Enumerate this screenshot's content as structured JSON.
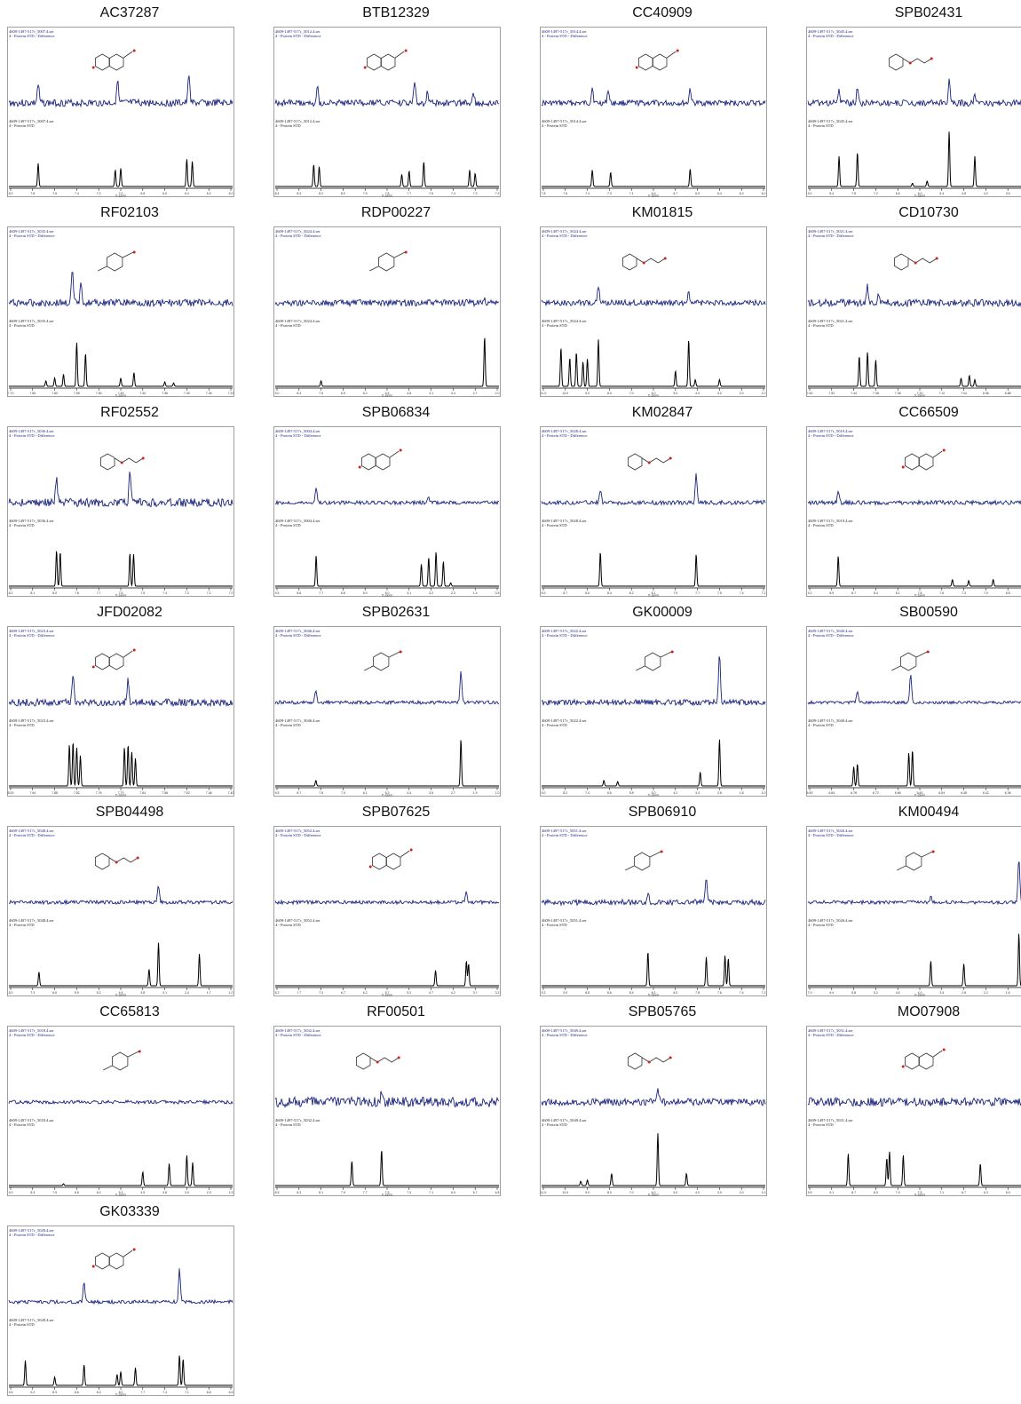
{
  "colors": {
    "difference": "#1a237e",
    "reference": "#000000",
    "molecule": "#333333",
    "heteroatom": "#cc2222"
  },
  "header_lines": {
    "diff_suffix": "Protein STD - Difference",
    "ref_suffix": "Protein STD",
    "axis_label": "f1 (ppm)"
  },
  "compounds": [
    {
      "id": "AC37287",
      "file": "4609-1497-517c_5007.4.ser",
      "mol": "ring2",
      "ppm": [
        8.0,
        6.0
      ],
      "peaks": [
        [
          7.75,
          0.42
        ],
        [
          7.05,
          0.3
        ],
        [
          7.0,
          0.33
        ],
        [
          6.4,
          0.5
        ],
        [
          6.35,
          0.46
        ]
      ],
      "diff": [
        [
          7.75,
          0.35
        ],
        [
          7.03,
          0.45
        ],
        [
          6.38,
          0.55
        ]
      ],
      "noise": 0.1
    },
    {
      "id": "BTB12329",
      "file": "4609-1497-517c_5012.4.ser",
      "mol": "ring2",
      "ppm": [
        8.4,
        7.2
      ],
      "peaks": [
        [
          8.2,
          0.4
        ],
        [
          8.17,
          0.36
        ],
        [
          7.72,
          0.22
        ],
        [
          7.68,
          0.28
        ],
        [
          7.6,
          0.45
        ],
        [
          7.35,
          0.3
        ],
        [
          7.32,
          0.24
        ]
      ],
      "diff": [
        [
          8.18,
          0.3
        ],
        [
          7.65,
          0.4
        ],
        [
          7.58,
          0.25
        ],
        [
          7.33,
          0.2
        ]
      ],
      "noise": 0.09
    },
    {
      "id": "CC40909",
      "file": "4609-1497-517c_5014.4.ser",
      "mol": "ring2",
      "ppm": [
        7.8,
        6.0
      ],
      "peaks": [
        [
          7.4,
          0.3
        ],
        [
          7.25,
          0.26
        ],
        [
          6.6,
          0.32
        ]
      ],
      "diff": [
        [
          7.4,
          0.3
        ],
        [
          7.27,
          0.26
        ],
        [
          6.6,
          0.28
        ]
      ],
      "noise": 0.08
    },
    {
      "id": "SPB02431",
      "file": "4609-1497-517c_5045.4.ser",
      "mol": "chain",
      "ppm": [
        9.0,
        3.0
      ],
      "peaks": [
        [
          8.2,
          0.55
        ],
        [
          7.7,
          0.62
        ],
        [
          6.2,
          0.06
        ],
        [
          5.8,
          0.1
        ],
        [
          5.2,
          1.0
        ],
        [
          4.5,
          0.55
        ]
      ],
      "diff": [
        [
          8.2,
          0.25
        ],
        [
          7.7,
          0.3
        ],
        [
          5.2,
          0.4
        ],
        [
          4.5,
          0.2
        ]
      ],
      "noise": 0.09
    },
    {
      "id": "RF02103",
      "file": "4609-1497-517c_5035.4.ser",
      "mol": "ring1",
      "ppm": [
        7.7,
        7.2
      ],
      "peaks": [
        [
          7.62,
          0.1
        ],
        [
          7.6,
          0.15
        ],
        [
          7.58,
          0.22
        ],
        [
          7.55,
          0.8
        ],
        [
          7.53,
          0.6
        ],
        [
          7.45,
          0.15
        ],
        [
          7.42,
          0.25
        ],
        [
          7.35,
          0.08
        ],
        [
          7.33,
          0.06
        ]
      ],
      "diff": [
        [
          7.56,
          0.6
        ],
        [
          7.54,
          0.4
        ]
      ],
      "noise": 0.1
    },
    {
      "id": "RDP00227",
      "file": "4609-1497-517c_5024.4.ser",
      "mol": "ring1",
      "ppm": [
        9.0,
        2.0
      ],
      "peaks": [
        [
          7.6,
          0.1
        ],
        [
          2.4,
          0.9
        ]
      ],
      "diff": [
        [
          2.4,
          0.05
        ]
      ],
      "noise": 0.09
    },
    {
      "id": "KM01815",
      "file": "4609-1497-517c_5024.4.ser",
      "mol": "chain",
      "ppm": [
        11.0,
        1.0
      ],
      "peaks": [
        [
          10.2,
          0.7
        ],
        [
          9.8,
          0.52
        ],
        [
          9.5,
          0.62
        ],
        [
          9.2,
          0.45
        ],
        [
          9.0,
          0.5
        ],
        [
          8.5,
          0.85
        ],
        [
          5.0,
          0.28
        ],
        [
          4.4,
          0.85
        ],
        [
          4.1,
          0.12
        ],
        [
          3.0,
          0.12
        ]
      ],
      "diff": [
        [
          8.5,
          0.3
        ],
        [
          4.4,
          0.25
        ]
      ],
      "noise": 0.08
    },
    {
      "id": "CD10730",
      "file": "4609-1497-517c_5021.4.ser",
      "mol": "chain",
      "ppm": [
        7.6,
        6.8
      ],
      "peaks": [
        [
          7.42,
          0.55
        ],
        [
          7.39,
          0.62
        ],
        [
          7.36,
          0.48
        ],
        [
          7.05,
          0.15
        ],
        [
          7.02,
          0.2
        ],
        [
          7.0,
          0.12
        ]
      ],
      "diff": [
        [
          7.39,
          0.3
        ],
        [
          7.35,
          0.2
        ]
      ],
      "noise": 0.1
    },
    {
      "id": "RF02552",
      "file": "4609-1497-517c_5036.4.ser",
      "mol": "chain",
      "ppm": [
        8.2,
        7.0
      ],
      "peaks": [
        [
          7.95,
          0.65
        ],
        [
          7.93,
          0.62
        ],
        [
          7.55,
          0.6
        ],
        [
          7.53,
          0.58
        ]
      ],
      "diff": [
        [
          7.95,
          0.5
        ],
        [
          7.55,
          0.55
        ]
      ],
      "noise": 0.12
    },
    {
      "id": "SPB06834",
      "file": "4609-1497-517c_5004.4.ser",
      "mol": "ring2",
      "ppm": [
        9.5,
        0.5
      ],
      "peaks": [
        [
          7.9,
          0.55
        ],
        [
          3.6,
          0.4
        ],
        [
          3.3,
          0.52
        ],
        [
          3.0,
          0.62
        ],
        [
          2.7,
          0.45
        ],
        [
          2.4,
          0.06
        ]
      ],
      "diff": [
        [
          7.9,
          0.3
        ],
        [
          3.3,
          0.1
        ]
      ],
      "noise": 0.05
    },
    {
      "id": "KM02847",
      "file": "4609-1497-517c_5028.4.ser",
      "mol": "chain",
      "ppm": [
        8.9,
        7.2
      ],
      "peaks": [
        [
          8.46,
          0.62
        ],
        [
          7.72,
          0.58
        ]
      ],
      "diff": [
        [
          8.46,
          0.25
        ],
        [
          7.72,
          0.55
        ]
      ],
      "noise": 0.06
    },
    {
      "id": "CC66509",
      "file": "4609-1497-517c_5019.4.ser",
      "mol": "ring2",
      "ppm": [
        9.2,
        6.5
      ],
      "peaks": [
        [
          8.85,
          0.55
        ],
        [
          7.45,
          0.12
        ],
        [
          7.25,
          0.1
        ],
        [
          6.95,
          0.12
        ]
      ],
      "diff": [
        [
          8.85,
          0.2
        ]
      ],
      "noise": 0.06
    },
    {
      "id": "JFD02082",
      "file": "4609-1497-517c_5023.4.ser",
      "mol": "ring2",
      "ppm": [
        8.0,
        7.4
      ],
      "peaks": [
        [
          7.84,
          0.75
        ],
        [
          7.83,
          0.8
        ],
        [
          7.82,
          0.7
        ],
        [
          7.81,
          0.55
        ],
        [
          7.69,
          0.7
        ],
        [
          7.68,
          0.75
        ],
        [
          7.67,
          0.62
        ],
        [
          7.66,
          0.5
        ]
      ],
      "diff": [
        [
          7.83,
          0.5
        ],
        [
          7.68,
          0.45
        ]
      ],
      "noise": 0.1
    },
    {
      "id": "SPB02631",
      "file": "4609-1497-517c_5046.4.ser",
      "mol": "ring1",
      "ppm": [
        9.5,
        1.0
      ],
      "peaks": [
        [
          8.0,
          0.1
        ],
        [
          2.4,
          0.85
        ]
      ],
      "diff": [
        [
          8.0,
          0.25
        ],
        [
          2.4,
          0.6
        ]
      ],
      "noise": 0.05
    },
    {
      "id": "GK00009",
      "file": "4609-1497-517c_5022.4.ser",
      "mol": "ring1",
      "ppm": [
        9.0,
        1.0
      ],
      "peaks": [
        [
          6.8,
          0.1
        ],
        [
          6.3,
          0.08
        ],
        [
          3.3,
          0.25
        ],
        [
          2.6,
          0.85
        ]
      ],
      "diff": [
        [
          2.6,
          0.9
        ]
      ],
      "noise": 0.08
    },
    {
      "id": "SB00590",
      "file": "4609-1497-517c_5040.4.ser",
      "mol": "ring1",
      "ppm": [
        6.9,
        6.3
      ],
      "peaks": [
        [
          6.78,
          0.35
        ],
        [
          6.77,
          0.4
        ],
        [
          6.63,
          0.6
        ],
        [
          6.62,
          0.65
        ]
      ],
      "diff": [
        [
          6.77,
          0.2
        ],
        [
          6.625,
          0.55
        ]
      ],
      "noise": 0.04
    },
    {
      "id": "SPB04498",
      "file": "4609-1497-517c_5048.4.ser",
      "mol": "chain",
      "ppm": [
        8.0,
        1.0
      ],
      "peaks": [
        [
          7.1,
          0.25
        ],
        [
          3.6,
          0.3
        ],
        [
          3.3,
          0.78
        ],
        [
          2.0,
          0.58
        ]
      ],
      "diff": [
        [
          3.3,
          0.3
        ]
      ],
      "noise": 0.05
    },
    {
      "id": "SPB07625",
      "file": "4609-1497-517c_5052.4.ser",
      "mol": "ring2",
      "ppm": [
        8.2,
        3.2
      ],
      "peaks": [
        [
          4.6,
          0.28
        ],
        [
          3.9,
          0.45
        ],
        [
          3.85,
          0.4
        ]
      ],
      "diff": [
        [
          3.9,
          0.2
        ]
      ],
      "noise": 0.05
    },
    {
      "id": "SPB06910",
      "file": "4609-1497-517c_5051.4.ser",
      "mol": "ring1",
      "ppm": [
        9.2,
        7.2
      ],
      "peaks": [
        [
          8.25,
          0.62
        ],
        [
          7.72,
          0.52
        ],
        [
          7.55,
          0.55
        ],
        [
          7.52,
          0.5
        ]
      ],
      "diff": [
        [
          8.25,
          0.2
        ],
        [
          7.72,
          0.45
        ]
      ],
      "noise": 0.08
    },
    {
      "id": "KM00494",
      "file": "4609-1497-517c_5026.4.ser",
      "mol": "ring1",
      "ppm": [
        7.0,
        1.0
      ],
      "peaks": [
        [
          3.7,
          0.45
        ],
        [
          2.8,
          0.4
        ],
        [
          1.3,
          0.95
        ]
      ],
      "diff": [
        [
          3.7,
          0.1
        ],
        [
          1.3,
          0.85
        ]
      ],
      "noise": 0.05
    },
    {
      "id": "CC65813",
      "file": "4609-1497-517c_5018.4.ser",
      "mol": "ring1",
      "ppm": [
        9.0,
        1.5
      ],
      "peaks": [
        [
          7.2,
          0.03
        ],
        [
          4.5,
          0.25
        ],
        [
          3.6,
          0.4
        ],
        [
          3.0,
          0.55
        ],
        [
          2.8,
          0.42
        ]
      ],
      "diff": [],
      "noise": 0.05
    },
    {
      "id": "RF00501",
      "file": "4609-1497-517c_5032.4.ser",
      "mol": "chain",
      "ppm": [
        8.5,
        6.5
      ],
      "peaks": [
        [
          7.82,
          0.45
        ],
        [
          7.55,
          0.65
        ]
      ],
      "diff": [
        [
          7.55,
          0.2
        ]
      ],
      "noise": 0.14
    },
    {
      "id": "SPB05765",
      "file": "4609-1497-517c_5049.4.ser",
      "mol": "chain",
      "ppm": [
        11.0,
        1.0
      ],
      "peaks": [
        [
          9.3,
          0.08
        ],
        [
          9.0,
          0.1
        ],
        [
          7.9,
          0.22
        ],
        [
          5.8,
          0.95
        ],
        [
          4.5,
          0.22
        ]
      ],
      "diff": [
        [
          5.8,
          0.3
        ]
      ],
      "noise": 0.1
    },
    {
      "id": "MO07908",
      "file": "4609-1497-517c_5031.4.ser",
      "mol": "ring2",
      "ppm": [
        9.5,
        5.5
      ],
      "peaks": [
        [
          8.8,
          0.58
        ],
        [
          8.1,
          0.5
        ],
        [
          8.05,
          0.62
        ],
        [
          7.8,
          0.55
        ],
        [
          6.4,
          0.4
        ]
      ],
      "diff": [
        [
          8.05,
          0.15
        ]
      ],
      "noise": 0.12
    },
    {
      "id": "GK03339",
      "file": "4609-1497-517c_5028.4.ser",
      "mol": "ring2",
      "ppm": [
        9.5,
        6.5
      ],
      "peaks": [
        [
          9.3,
          0.45
        ],
        [
          8.9,
          0.15
        ],
        [
          8.5,
          0.38
        ],
        [
          8.05,
          0.2
        ],
        [
          8.0,
          0.25
        ],
        [
          7.8,
          0.32
        ],
        [
          7.2,
          0.55
        ],
        [
          7.15,
          0.48
        ]
      ],
      "diff": [
        [
          8.5,
          0.35
        ],
        [
          7.2,
          0.6
        ]
      ],
      "noise": 0.05
    }
  ]
}
